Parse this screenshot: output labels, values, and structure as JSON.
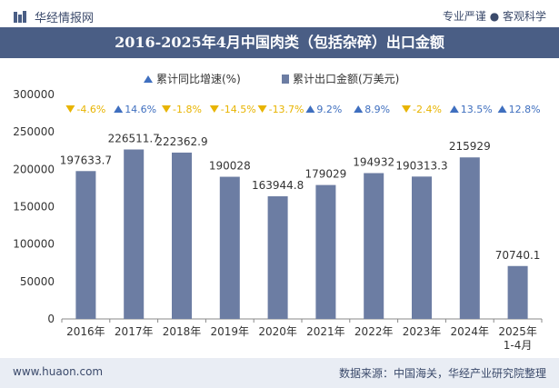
{
  "header": {
    "brand": "华经情报网",
    "right_text": "专业严谨 ● 客观科学"
  },
  "title": "2016-2025年4月中国肉类（包括杂碎）出口金额",
  "footer": {
    "left": "www.huaon.com",
    "right": "数据来源：中国海关，华经产业研究院整理"
  },
  "colors": {
    "bar": "#6c7da3",
    "up": "#3f6fbf",
    "down": "#e8b400",
    "title_bg": "#4a5e85"
  },
  "chart_data": {
    "type": "bar",
    "categories": [
      "2016年",
      "2017年",
      "2018年",
      "2019年",
      "2020年",
      "2021年",
      "2022年",
      "2023年",
      "2024年",
      "2025年\n1-4月"
    ],
    "series": [
      {
        "name": "累计出口金额(万美元)",
        "values": [
          197633.7,
          226511.7,
          222362.9,
          190028,
          163944.8,
          179029,
          194932,
          190313.3,
          215929,
          70740.1
        ]
      },
      {
        "name": "累计同比增速(%)",
        "values": [
          -4.6,
          14.6,
          -1.8,
          -14.5,
          -13.7,
          9.2,
          8.9,
          -2.4,
          13.5,
          12.8
        ]
      }
    ],
    "value_labels": [
      "197633.7",
      "226511.7",
      "222362.9",
      "190028",
      "163944.8",
      "179029",
      "194932",
      "190313.3",
      "215929",
      "70740.1"
    ],
    "growth_labels": [
      "-4.6%",
      "14.6%",
      "-1.8%",
      "-14.5%",
      "-13.7%",
      "9.2%",
      "8.9%",
      "-2.4%",
      "13.5%",
      "12.8%"
    ],
    "legend": [
      "累计同比增速(%)",
      "累计出口金额(万美元)"
    ],
    "yticks": [
      "0",
      "50000",
      "100000",
      "150000",
      "200000",
      "250000",
      "300000"
    ],
    "ylim": [
      0,
      300000
    ],
    "legend_position": "top-center"
  }
}
